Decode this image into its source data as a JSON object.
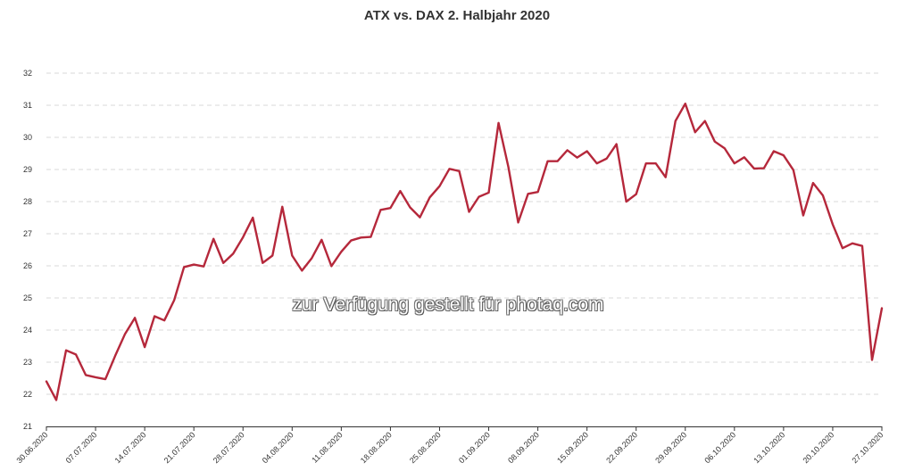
{
  "chart_data": {
    "type": "line",
    "title": "ATX vs. DAX 2. Halbjahr 2020",
    "xlabel": "",
    "ylabel": "",
    "ylim": [
      21,
      32
    ],
    "y_ticks": [
      "21",
      "22",
      "23",
      "24",
      "25",
      "26",
      "27",
      "28",
      "29",
      "30",
      "31",
      "32"
    ],
    "x_tick_labels": [
      "30.06.2020",
      "07.07.2020",
      "14.07.2020",
      "21.07.2020",
      "28.07.2020",
      "04.08.2020",
      "11.08.2020",
      "18.08.2020",
      "25.08.2020",
      "01.09.2020",
      "08.09.2020",
      "15.09.2020",
      "22.09.2020",
      "29.09.2020",
      "06.10.2020",
      "13.10.2020",
      "20.10.2020",
      "27.10.2020"
    ],
    "grid": "horizontal dashed",
    "series": [
      {
        "color": "#b5283b",
        "values": [
          22.4,
          21.82,
          23.37,
          23.24,
          22.6,
          22.53,
          22.47,
          23.2,
          23.88,
          24.38,
          23.47,
          24.43,
          24.3,
          24.93,
          25.96,
          26.04,
          25.98,
          26.84,
          26.09,
          26.38,
          26.89,
          27.5,
          26.09,
          26.32,
          27.84,
          26.32,
          25.85,
          26.24,
          26.81,
          25.99,
          26.44,
          26.79,
          26.88,
          26.9,
          27.74,
          27.8,
          28.33,
          27.82,
          27.51,
          28.13,
          28.48,
          29.02,
          28.95,
          27.68,
          28.15,
          28.28,
          30.45,
          29.08,
          27.35,
          28.24,
          28.3,
          29.26,
          29.26,
          29.6,
          29.37,
          29.57,
          29.19,
          29.34,
          29.79,
          28.0,
          28.23,
          29.19,
          29.19,
          28.76,
          30.51,
          31.05,
          30.16,
          30.51,
          29.87,
          29.66,
          29.19,
          29.38,
          29.03,
          29.04,
          29.57,
          29.44,
          28.98,
          27.57,
          28.58,
          28.19,
          27.29,
          26.55,
          26.7,
          26.62,
          23.07,
          24.68
        ]
      }
    ]
  },
  "watermark": "zur Verfügung gestellt für photaq.com"
}
